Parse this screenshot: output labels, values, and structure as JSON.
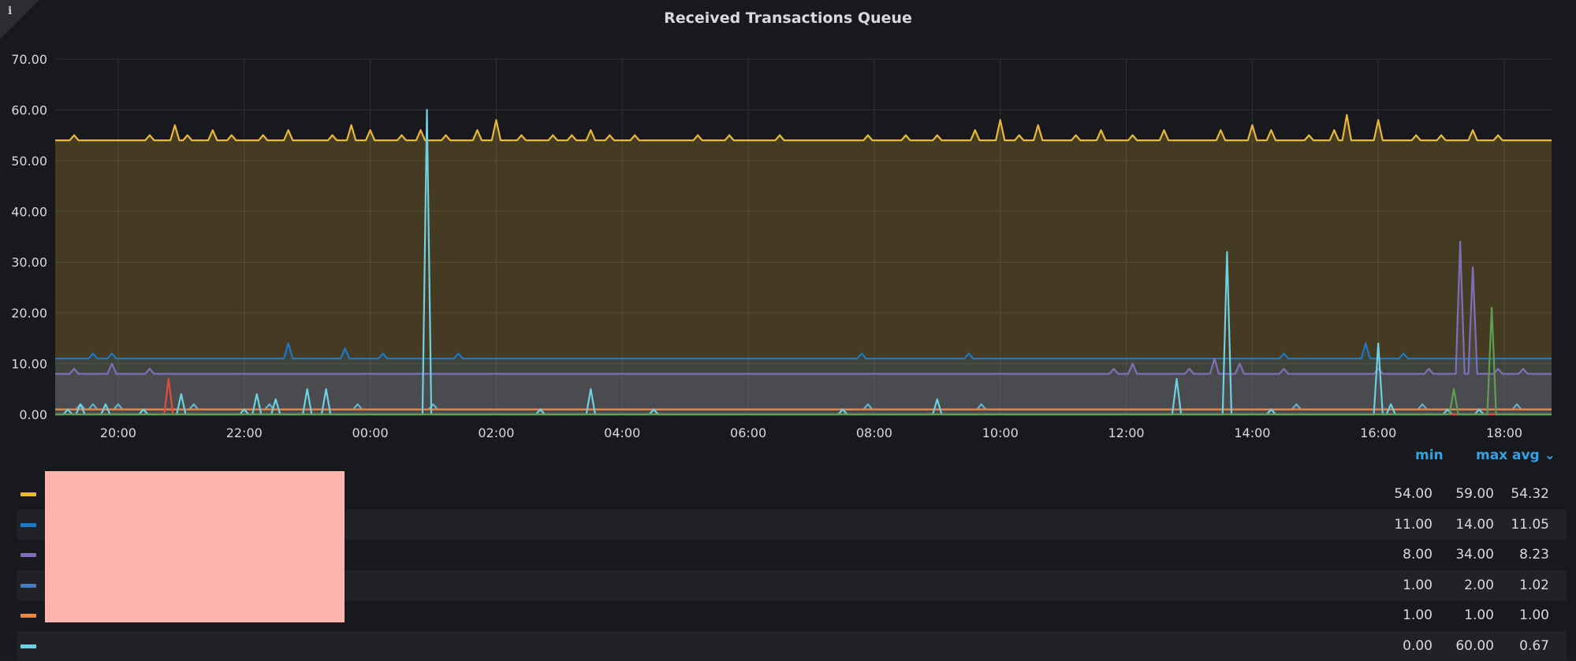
{
  "panel": {
    "title": "Received Transactions Queue",
    "info_icon": "info-icon",
    "info_glyph": "i"
  },
  "chart_data": {
    "type": "line",
    "title": "Received Transactions Queue",
    "xlabel": "",
    "ylabel": "",
    "ylim": [
      0,
      70
    ],
    "xlim": [
      -5.0,
      18.75
    ],
    "y_ticks": [
      "0.00",
      "10.00",
      "20.00",
      "30.00",
      "40.00",
      "50.00",
      "60.00",
      "70.00"
    ],
    "y_tick_values": [
      0,
      10,
      20,
      30,
      40,
      50,
      60,
      70
    ],
    "x_ticks": [
      "20:00",
      "22:00",
      "00:00",
      "02:00",
      "04:00",
      "06:00",
      "08:00",
      "10:00",
      "12:00",
      "14:00",
      "16:00",
      "18:00"
    ],
    "x_tick_values": [
      -4,
      -2,
      0,
      2,
      4,
      6,
      8,
      10,
      12,
      14,
      16,
      18
    ],
    "grid": true,
    "legend_position": "bottom",
    "series": [
      {
        "color": "#eab839",
        "fill": true,
        "baseline": 54,
        "spikes": [
          [
            -4.7,
            55
          ],
          [
            -3.5,
            55
          ],
          [
            -3.1,
            57
          ],
          [
            -2.9,
            55
          ],
          [
            -2.5,
            56
          ],
          [
            -2.2,
            55
          ],
          [
            -1.7,
            55
          ],
          [
            -1.3,
            56
          ],
          [
            -0.6,
            55
          ],
          [
            -0.3,
            57
          ],
          [
            0.0,
            56
          ],
          [
            0.5,
            55
          ],
          [
            0.8,
            56
          ],
          [
            1.2,
            55
          ],
          [
            1.7,
            56
          ],
          [
            2.0,
            58
          ],
          [
            2.4,
            55
          ],
          [
            2.9,
            55
          ],
          [
            3.2,
            55
          ],
          [
            3.5,
            56
          ],
          [
            3.8,
            55
          ],
          [
            4.2,
            55
          ],
          [
            5.2,
            55
          ],
          [
            5.7,
            55
          ],
          [
            6.5,
            55
          ],
          [
            7.9,
            55
          ],
          [
            8.5,
            55
          ],
          [
            9.0,
            55
          ],
          [
            9.6,
            56
          ],
          [
            10.0,
            58
          ],
          [
            10.3,
            55
          ],
          [
            10.6,
            57
          ],
          [
            11.2,
            55
          ],
          [
            11.6,
            56
          ],
          [
            12.1,
            55
          ],
          [
            12.6,
            56
          ],
          [
            13.5,
            56
          ],
          [
            14.0,
            57
          ],
          [
            14.3,
            56
          ],
          [
            14.9,
            55
          ],
          [
            15.3,
            56
          ],
          [
            15.5,
            59
          ],
          [
            16.0,
            58
          ],
          [
            16.6,
            55
          ],
          [
            17.0,
            55
          ],
          [
            17.5,
            56
          ],
          [
            17.9,
            55
          ]
        ]
      },
      {
        "color": "#1f78c1",
        "fill": true,
        "baseline": 11,
        "spikes": [
          [
            -4.4,
            12
          ],
          [
            -4.1,
            12
          ],
          [
            -1.3,
            14
          ],
          [
            -0.4,
            13
          ],
          [
            0.2,
            12
          ],
          [
            1.4,
            12
          ],
          [
            7.8,
            12
          ],
          [
            9.5,
            12
          ],
          [
            14.5,
            12
          ],
          [
            15.8,
            14
          ],
          [
            16.4,
            12
          ]
        ]
      },
      {
        "color": "#806eb7",
        "fill": true,
        "baseline": 8,
        "spikes": [
          [
            -4.7,
            9
          ],
          [
            -4.1,
            10
          ],
          [
            -3.5,
            9
          ],
          [
            11.8,
            9
          ],
          [
            12.1,
            10
          ],
          [
            13.0,
            9
          ],
          [
            13.4,
            11
          ],
          [
            13.8,
            10
          ],
          [
            14.5,
            9
          ],
          [
            16.0,
            9
          ],
          [
            16.8,
            9
          ],
          [
            17.3,
            34
          ],
          [
            17.5,
            29
          ],
          [
            17.9,
            9
          ],
          [
            18.3,
            9
          ]
        ]
      },
      {
        "color": "#64b0c8",
        "fill": false,
        "baseline": 1,
        "spikes": [
          [
            -4.6,
            2
          ],
          [
            -4.4,
            2
          ],
          [
            -4.0,
            2
          ],
          [
            -2.8,
            2
          ],
          [
            -1.6,
            2
          ],
          [
            -0.2,
            2
          ],
          [
            1.0,
            2
          ],
          [
            7.9,
            2
          ],
          [
            9.7,
            2
          ],
          [
            14.7,
            2
          ],
          [
            16.7,
            2
          ],
          [
            18.2,
            2
          ]
        ]
      },
      {
        "color": "#ef843c",
        "fill": false,
        "baseline": 1,
        "spikes": []
      },
      {
        "color": "#6ed0e0",
        "fill": false,
        "baseline": 0,
        "spikes": [
          [
            -4.8,
            1
          ],
          [
            -4.6,
            2
          ],
          [
            -4.2,
            2
          ],
          [
            -3.6,
            1
          ],
          [
            -3.0,
            4
          ],
          [
            -2.0,
            1
          ],
          [
            -1.8,
            4
          ],
          [
            -1.5,
            3
          ],
          [
            -1.0,
            5
          ],
          [
            -0.7,
            5
          ],
          [
            0.9,
            60
          ],
          [
            2.7,
            1
          ],
          [
            3.5,
            5
          ],
          [
            4.5,
            1
          ],
          [
            7.5,
            1
          ],
          [
            9.0,
            3
          ],
          [
            12.8,
            7
          ],
          [
            13.6,
            32
          ],
          [
            14.3,
            1
          ],
          [
            16.0,
            14
          ],
          [
            16.2,
            2
          ],
          [
            17.1,
            1
          ],
          [
            17.6,
            1
          ]
        ]
      },
      {
        "color": "#e24d42",
        "fill": false,
        "baseline": 0,
        "spikes": [
          [
            -3.2,
            7
          ]
        ]
      },
      {
        "color": "#629e51",
        "fill": false,
        "baseline": 0,
        "spikes": [
          [
            17.2,
            5
          ],
          [
            17.8,
            21
          ]
        ]
      }
    ]
  },
  "legend": {
    "headers": {
      "min": "min",
      "max": "max",
      "avg": "avg",
      "sort_glyph": "⌄"
    },
    "rows": [
      {
        "color": "#eab839",
        "name": "",
        "min": "54.00",
        "max": "59.00",
        "avg": "54.32"
      },
      {
        "color": "#1f78c1",
        "name": "",
        "min": "11.00",
        "max": "14.00",
        "avg": "11.05"
      },
      {
        "color": "#806eb7",
        "name": "",
        "min": "8.00",
        "max": "34.00",
        "avg": "8.23"
      },
      {
        "color": "#447ebc",
        "name": "",
        "min": "1.00",
        "max": "2.00",
        "avg": "1.02"
      },
      {
        "color": "#ef843c",
        "name": "",
        "min": "1.00",
        "max": "1.00",
        "avg": "1.00"
      },
      {
        "color": "#6ed0e0",
        "name": "",
        "min": "0.00",
        "max": "60.00",
        "avg": "0.67"
      }
    ]
  }
}
